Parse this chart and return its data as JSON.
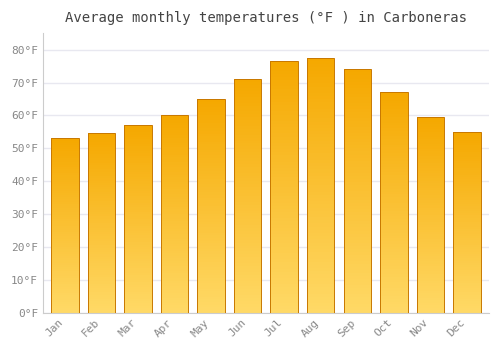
{
  "title": "Average monthly temperatures (°F ) in Carboneras",
  "months": [
    "Jan",
    "Feb",
    "Mar",
    "Apr",
    "May",
    "Jun",
    "Jul",
    "Aug",
    "Sep",
    "Oct",
    "Nov",
    "Dec"
  ],
  "values": [
    53,
    54.5,
    57,
    60,
    65,
    71,
    76.5,
    77.5,
    74,
    67,
    59.5,
    55
  ],
  "bar_color_top": "#F5A800",
  "bar_color_bottom": "#FFD966",
  "bar_edge_color": "#C87800",
  "yticks": [
    0,
    10,
    20,
    30,
    40,
    50,
    60,
    70,
    80
  ],
  "ytick_labels": [
    "0°F",
    "10°F",
    "20°F",
    "30°F",
    "40°F",
    "50°F",
    "60°F",
    "70°F",
    "80°F"
  ],
  "ylim": [
    0,
    85
  ],
  "background_color": "#ffffff",
  "grid_color": "#e8e8f0",
  "title_fontsize": 10,
  "tick_fontsize": 8,
  "tick_color": "#888888",
  "bar_width": 0.75
}
